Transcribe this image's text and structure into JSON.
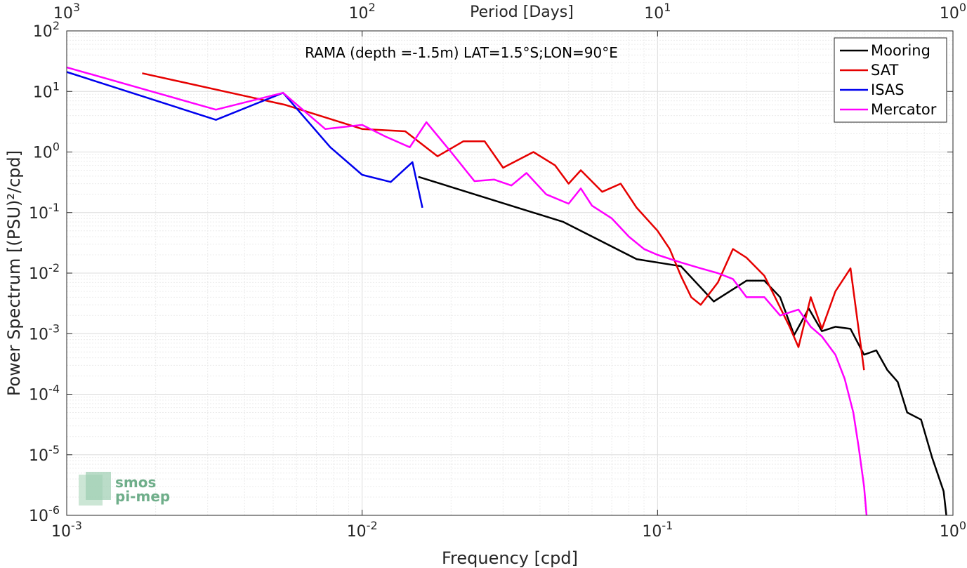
{
  "chart_data": {
    "type": "line",
    "title": "",
    "annotation": "RAMA (depth =-1.5m) LAT=1.5°S;LON=90°E",
    "xlabel": "Frequency [cpd]",
    "ylabel": "Power Spectrum [(PSU)²/cpd]",
    "x2label": "Period [Days]",
    "xscale": "log",
    "yscale": "log",
    "xlim": [
      0.001,
      1
    ],
    "ylim": [
      1e-06,
      100
    ],
    "grid": true,
    "legend_position": "top-right",
    "x_ticks": [
      {
        "value": 0.001,
        "base": "10",
        "exp": "-3"
      },
      {
        "value": 0.01,
        "base": "10",
        "exp": "-2"
      },
      {
        "value": 0.1,
        "base": "10",
        "exp": "-1"
      },
      {
        "value": 1,
        "base": "10",
        "exp": "0"
      }
    ],
    "x2_ticks": [
      {
        "value": 0.001,
        "base": "10",
        "exp": "3"
      },
      {
        "value": 0.01,
        "base": "10",
        "exp": "2"
      },
      {
        "value": 0.1,
        "base": "10",
        "exp": "1"
      },
      {
        "value": 1,
        "base": "10",
        "exp": "0"
      }
    ],
    "y_ticks": [
      {
        "value": 1e-06,
        "base": "10",
        "exp": "-6"
      },
      {
        "value": 1e-05,
        "base": "10",
        "exp": "-5"
      },
      {
        "value": 0.0001,
        "base": "10",
        "exp": "-4"
      },
      {
        "value": 0.001,
        "base": "10",
        "exp": "-3"
      },
      {
        "value": 0.01,
        "base": "10",
        "exp": "-2"
      },
      {
        "value": 0.1,
        "base": "10",
        "exp": "-1"
      },
      {
        "value": 1,
        "base": "10",
        "exp": "0"
      },
      {
        "value": 10,
        "base": "10",
        "exp": "1"
      },
      {
        "value": 100,
        "base": "10",
        "exp": "2"
      }
    ],
    "series": [
      {
        "name": "Mooring",
        "color": "#000000",
        "points": [
          [
            0.0155,
            0.39
          ],
          [
            0.048,
            0.07
          ],
          [
            0.085,
            0.017
          ],
          [
            0.12,
            0.013
          ],
          [
            0.155,
            0.0034
          ],
          [
            0.2,
            0.0075
          ],
          [
            0.23,
            0.0075
          ],
          [
            0.26,
            0.004
          ],
          [
            0.29,
            0.00095
          ],
          [
            0.325,
            0.0026
          ],
          [
            0.36,
            0.0011
          ],
          [
            0.4,
            0.0013
          ],
          [
            0.45,
            0.0012
          ],
          [
            0.5,
            0.00045
          ],
          [
            0.55,
            0.00053
          ],
          [
            0.6,
            0.00025
          ],
          [
            0.65,
            0.00016
          ],
          [
            0.7,
            5e-05
          ],
          [
            0.78,
            3.8e-05
          ],
          [
            0.85,
            9e-06
          ],
          [
            0.93,
            2.5e-06
          ],
          [
            0.95,
            1e-06
          ]
        ]
      },
      {
        "name": "SAT",
        "color": "#e60000",
        "points": [
          [
            0.0018,
            20
          ],
          [
            0.0055,
            6.0
          ],
          [
            0.01,
            2.4
          ],
          [
            0.014,
            2.2
          ],
          [
            0.018,
            0.85
          ],
          [
            0.022,
            1.5
          ],
          [
            0.026,
            1.5
          ],
          [
            0.03,
            0.55
          ],
          [
            0.038,
            1.0
          ],
          [
            0.045,
            0.6
          ],
          [
            0.05,
            0.3
          ],
          [
            0.055,
            0.5
          ],
          [
            0.065,
            0.22
          ],
          [
            0.075,
            0.3
          ],
          [
            0.085,
            0.12
          ],
          [
            0.1,
            0.05
          ],
          [
            0.11,
            0.025
          ],
          [
            0.12,
            0.009
          ],
          [
            0.13,
            0.004
          ],
          [
            0.14,
            0.003
          ],
          [
            0.16,
            0.007
          ],
          [
            0.18,
            0.025
          ],
          [
            0.2,
            0.018
          ],
          [
            0.23,
            0.009
          ],
          [
            0.25,
            0.004
          ],
          [
            0.28,
            0.0013
          ],
          [
            0.3,
            0.0006
          ],
          [
            0.33,
            0.004
          ],
          [
            0.36,
            0.0012
          ],
          [
            0.4,
            0.005
          ],
          [
            0.45,
            0.012
          ],
          [
            0.5,
            0.00025
          ]
        ]
      },
      {
        "name": "ISAS",
        "color": "#0000ee",
        "points": [
          [
            0.001,
            21
          ],
          [
            0.0032,
            3.4
          ],
          [
            0.0054,
            9.5
          ],
          [
            0.0078,
            1.2
          ],
          [
            0.01,
            0.42
          ],
          [
            0.0125,
            0.32
          ],
          [
            0.0148,
            0.68
          ],
          [
            0.016,
            0.12
          ]
        ]
      },
      {
        "name": "Mercator",
        "color": "#ff00ff",
        "points": [
          [
            0.001,
            25
          ],
          [
            0.0032,
            5.0
          ],
          [
            0.0054,
            9.5
          ],
          [
            0.0075,
            2.4
          ],
          [
            0.01,
            2.8
          ],
          [
            0.012,
            1.8
          ],
          [
            0.0145,
            1.2
          ],
          [
            0.0165,
            3.1
          ],
          [
            0.02,
            1.0
          ],
          [
            0.024,
            0.33
          ],
          [
            0.028,
            0.35
          ],
          [
            0.032,
            0.28
          ],
          [
            0.036,
            0.45
          ],
          [
            0.042,
            0.2
          ],
          [
            0.05,
            0.14
          ],
          [
            0.055,
            0.25
          ],
          [
            0.06,
            0.13
          ],
          [
            0.07,
            0.08
          ],
          [
            0.08,
            0.04
          ],
          [
            0.09,
            0.025
          ],
          [
            0.1,
            0.02
          ],
          [
            0.12,
            0.015
          ],
          [
            0.14,
            0.012
          ],
          [
            0.16,
            0.01
          ],
          [
            0.18,
            0.008
          ],
          [
            0.2,
            0.004
          ],
          [
            0.23,
            0.004
          ],
          [
            0.26,
            0.002
          ],
          [
            0.3,
            0.0025
          ],
          [
            0.33,
            0.0013
          ],
          [
            0.36,
            0.0009
          ],
          [
            0.4,
            0.00045
          ],
          [
            0.43,
            0.00018
          ],
          [
            0.46,
            5e-05
          ],
          [
            0.48,
            1.3e-05
          ],
          [
            0.5,
            3e-06
          ],
          [
            0.51,
            1e-06
          ]
        ]
      }
    ]
  },
  "logo": {
    "line1": "smos",
    "line2": "pi-mep",
    "color": "#6fae8a"
  }
}
